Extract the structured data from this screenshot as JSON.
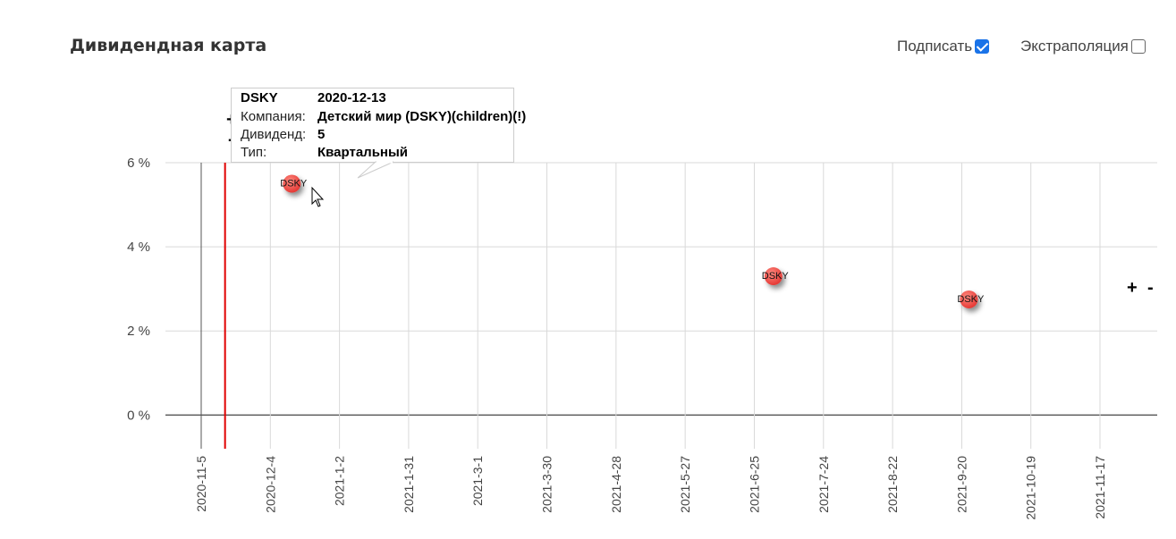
{
  "header": {
    "title": "Дивидендная карта"
  },
  "options": {
    "label_toggle": {
      "label": "Подписать",
      "checked": true
    },
    "extrapolation_toggle": {
      "label": "Экстраполяция",
      "checked": false
    }
  },
  "zoom": {
    "plus": "+",
    "minus": "-"
  },
  "tooltip": {
    "ticker": "DSKY",
    "date": "2020-12-13",
    "rows": [
      {
        "key": "Компания:",
        "value": "Детский мир (DSKY)(children)(!)"
      },
      {
        "key": "Дивиденд:",
        "value": "5"
      },
      {
        "key": "Тип:",
        "value": "Квартальный"
      }
    ]
  },
  "chart_data": {
    "type": "scatter",
    "title": "",
    "xlabel": "",
    "ylabel": "",
    "x_range": [
      "2020-10-21",
      "2021-12-11"
    ],
    "ylim": [
      -0.8,
      6
    ],
    "y_ticks": [
      0,
      2,
      4,
      6
    ],
    "y_tick_labels": [
      "0 %",
      "2 %",
      "4 %",
      "6 %"
    ],
    "x_ticks": [
      "2020-11-05",
      "2020-12-04",
      "2021-01-02",
      "2021-01-31",
      "2021-03-01",
      "2021-03-30",
      "2021-04-28",
      "2021-05-27",
      "2021-06-25",
      "2021-07-24",
      "2021-08-22",
      "2021-09-20",
      "2021-10-19",
      "2021-11-17"
    ],
    "x_tick_labels": [
      "2020-11-5",
      "2020-12-4",
      "2021-1-2",
      "2021-1-31",
      "2021-3-1",
      "2021-3-30",
      "2021-4-28",
      "2021-5-27",
      "2021-6-25",
      "2021-7-24",
      "2021-8-22",
      "2021-9-20",
      "2021-10-19",
      "2021-11-17"
    ],
    "grid": true,
    "today_line": "2020-11-15",
    "points": [
      {
        "label": "DSKY",
        "date": "2020-12-13",
        "y": 5.5
      },
      {
        "label": "DSKY",
        "date": "2021-07-03",
        "y": 3.3
      },
      {
        "label": "DSKY",
        "date": "2021-09-23",
        "y": 2.75
      }
    ],
    "point_color": "#e53935",
    "today_color": "#e00000"
  }
}
